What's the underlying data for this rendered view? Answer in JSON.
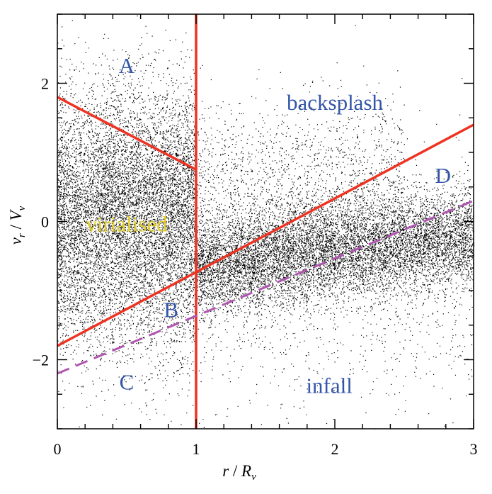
{
  "chart_data": {
    "type": "scatter",
    "title": "",
    "xlabel": {
      "main": "r",
      "slash": " / ",
      "symbol": "R",
      "subscript": "v"
    },
    "ylabel": {
      "main": "v",
      "main_sub": "r",
      "slash": " / ",
      "symbol": "V",
      "subscript": "v"
    },
    "xlim": [
      0,
      3
    ],
    "ylim": [
      -3,
      3
    ],
    "x_ticks": [
      "0",
      "1",
      "2",
      "3"
    ],
    "y_ticks": [
      "−2",
      "0",
      "2"
    ],
    "x_tick_values": [
      0,
      1,
      2,
      3
    ],
    "y_tick_values": [
      -2,
      0,
      2
    ],
    "grid": false,
    "point_color": "#000000",
    "boundary_color": "#ee3322",
    "dashed_color": "#b055b0",
    "lines": [
      {
        "name": "virial-top",
        "style": "solid",
        "x": [
          0,
          1
        ],
        "y": [
          1.8,
          0.75
        ]
      },
      {
        "name": "vertical-boundary",
        "style": "solid",
        "x": [
          1,
          1
        ],
        "y": [
          -3,
          3
        ]
      },
      {
        "name": "diagonal-boundary",
        "style": "solid",
        "x": [
          0,
          3
        ],
        "y": [
          -1.8,
          1.4
        ]
      },
      {
        "name": "infall-dashed",
        "style": "dashed",
        "x": [
          0,
          3
        ],
        "y": [
          -2.2,
          0.3
        ]
      }
    ],
    "scatter_regions": [
      {
        "x_range": [
          0,
          1.0
        ],
        "y_center": 0.0,
        "y_spread": 0.95,
        "count": 9000
      },
      {
        "x_range": [
          1.0,
          3.0
        ],
        "y_center_at_start": -0.65,
        "y_center_at_end": -0.2,
        "y_spread": 0.35,
        "count": 9000
      },
      {
        "x_range": [
          0.3,
          2.5
        ],
        "y_center": 0.55,
        "y_spread": 0.6,
        "count": 2500
      },
      {
        "x_range": [
          1.0,
          3.0
        ],
        "y_center": -0.9,
        "y_spread": 0.9,
        "count": 1200
      }
    ],
    "annotations": [
      {
        "text": "A",
        "x": 0.5,
        "y": 2.25,
        "color": "#3456a8"
      },
      {
        "text": "backsplash",
        "x": 2.0,
        "y": 1.72,
        "color": "#3456a8"
      },
      {
        "text": "D",
        "x": 2.78,
        "y": 0.66,
        "color": "#3456a8"
      },
      {
        "text": "virialised",
        "x": 0.5,
        "y": -0.04,
        "color": "#e0cc2a"
      },
      {
        "text": "B",
        "x": 0.82,
        "y": -1.28,
        "color": "#3456a8"
      },
      {
        "text": "C",
        "x": 0.5,
        "y": -2.33,
        "color": "#3456a8"
      },
      {
        "text": "infall",
        "x": 1.96,
        "y": -2.38,
        "color": "#3456a8"
      }
    ]
  }
}
